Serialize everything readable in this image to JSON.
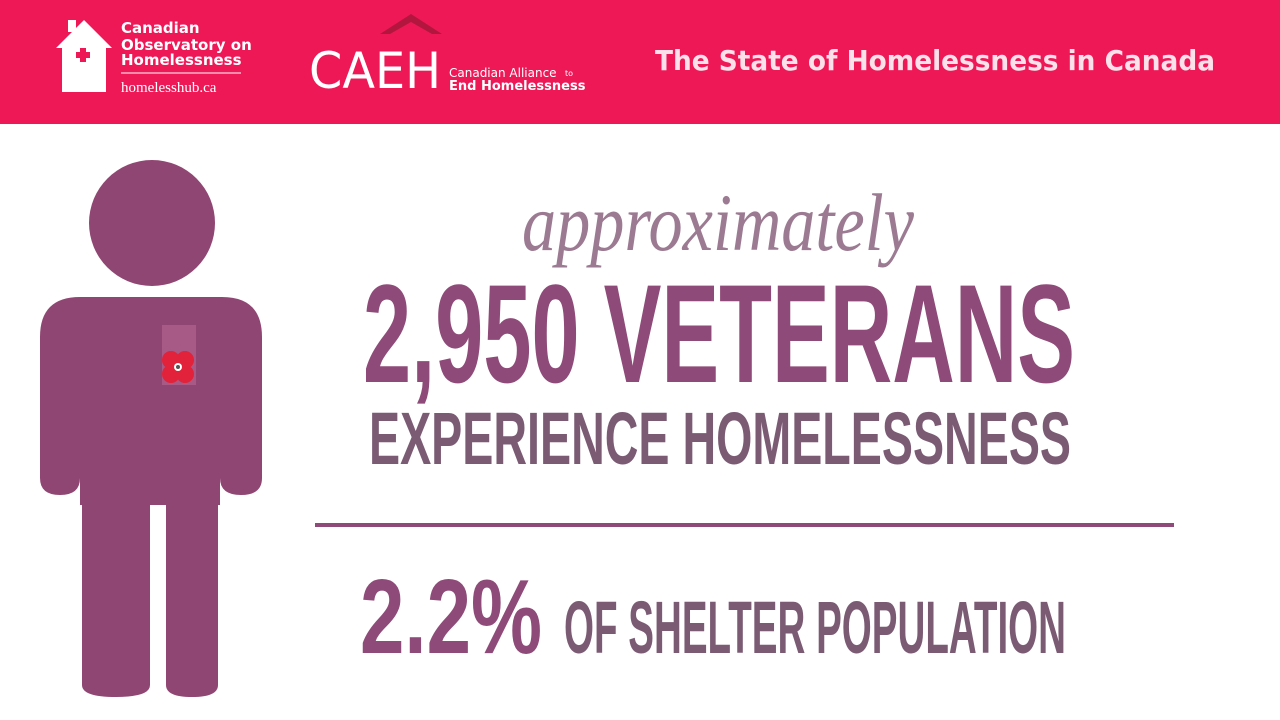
{
  "header": {
    "org1": {
      "lines": [
        "Canadian",
        "Observatory on",
        "Homelessness"
      ],
      "url": "homelesshub.ca"
    },
    "org2": {
      "acronym": "CAEH",
      "name_line1": "Canadian Alliance",
      "name_to": "to",
      "name_line2": "End Homelessness"
    },
    "title": "The State of Homelessness in Canada"
  },
  "infographic": {
    "qualifier": "approximately",
    "headline": "2,950 VETERANS",
    "subhead": "EXPERIENCE HOMELESSNESS",
    "percent": "2.2%",
    "percent_caption": "OF SHELTER POPULATION"
  }
}
